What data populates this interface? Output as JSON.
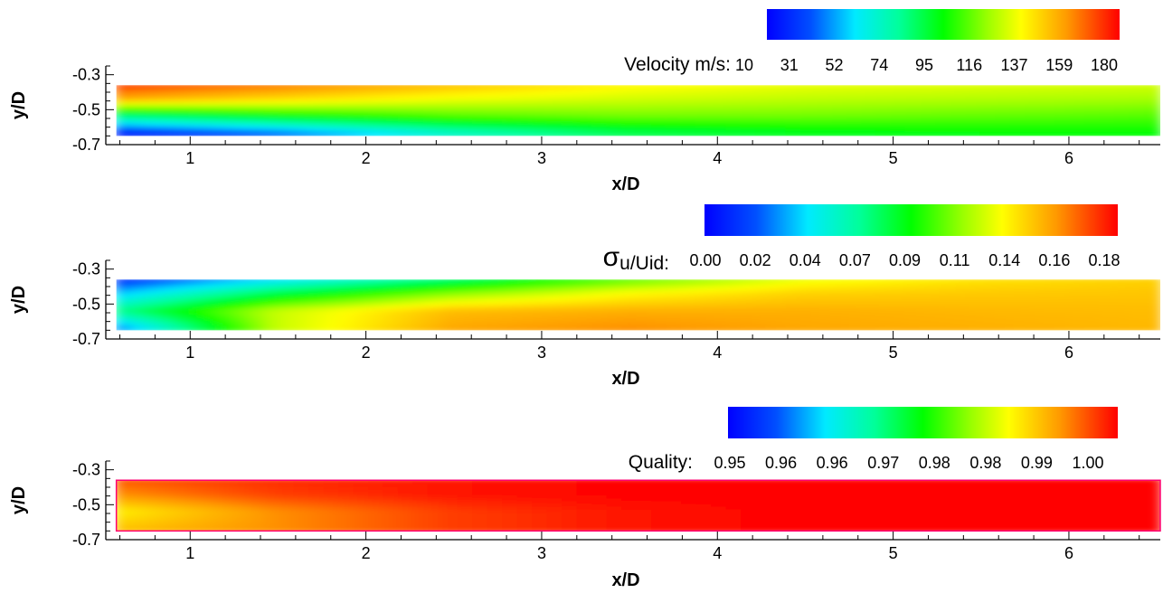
{
  "chart_data": [
    {
      "type": "heatmap",
      "xlabel": "x/D",
      "ylabel": "y/D",
      "xlim": [
        0.52,
        6.52
      ],
      "ylim": [
        -0.7,
        -0.25
      ],
      "field_extent": {
        "x": [
          0.58,
          6.52
        ],
        "y": [
          -0.65,
          -0.36
        ]
      },
      "x_ticks": [
        "1",
        "2",
        "3",
        "4",
        "5",
        "6"
      ],
      "y_ticks": [
        "-0.3",
        "-0.5",
        "-0.7"
      ],
      "colorbar": {
        "title_main": "Velocity m/s:",
        "title_sub": "",
        "labels": [
          "10",
          "31",
          "52",
          "74",
          "95",
          "116",
          "137",
          "159",
          "180"
        ],
        "range": [
          10,
          180
        ]
      },
      "field": {
        "x": [
          0.6,
          1.5,
          2.5,
          3.5,
          4.5,
          5.5,
          6.5
        ],
        "y": [
          -0.36,
          -0.45,
          -0.55,
          -0.65
        ],
        "values": [
          [
            172,
            162,
            148,
            135,
            130,
            128,
            126
          ],
          [
            150,
            140,
            130,
            125,
            122,
            120,
            118
          ],
          [
            75,
            92,
            105,
            110,
            110,
            108,
            106
          ],
          [
            15,
            32,
            62,
            82,
            90,
            93,
            94
          ]
        ]
      }
    },
    {
      "type": "heatmap",
      "xlabel": "x/D",
      "ylabel": "y/D",
      "xlim": [
        0.52,
        6.52
      ],
      "ylim": [
        -0.7,
        -0.25
      ],
      "field_extent": {
        "x": [
          0.58,
          6.52
        ],
        "y": [
          -0.65,
          -0.36
        ]
      },
      "x_ticks": [
        "1",
        "2",
        "3",
        "4",
        "5",
        "6"
      ],
      "y_ticks": [
        "-0.3",
        "-0.5",
        "-0.7"
      ],
      "colorbar": {
        "title_main": "σ",
        "title_sub": "u/Uid:",
        "labels": [
          "0.00",
          "0.02",
          "0.04",
          "0.07",
          "0.09",
          "0.11",
          "0.14",
          "0.16",
          "0.18"
        ],
        "range": [
          0.0,
          0.18
        ]
      },
      "field": {
        "x": [
          0.6,
          1.5,
          2.5,
          3.5,
          4.5,
          5.5,
          6.5
        ],
        "y": [
          -0.36,
          -0.45,
          -0.55,
          -0.65
        ],
        "values": [
          [
            0.01,
            0.04,
            0.07,
            0.1,
            0.125,
            0.135,
            0.14
          ],
          [
            0.04,
            0.08,
            0.11,
            0.13,
            0.14,
            0.142,
            0.143
          ],
          [
            0.07,
            0.12,
            0.145,
            0.148,
            0.148,
            0.146,
            0.145
          ],
          [
            0.03,
            0.12,
            0.15,
            0.155,
            0.15,
            0.148,
            0.146
          ]
        ]
      }
    },
    {
      "type": "heatmap",
      "xlabel": "x/D",
      "ylabel": "y/D",
      "xlim": [
        0.52,
        6.52
      ],
      "ylim": [
        -0.7,
        -0.25
      ],
      "field_extent": {
        "x": [
          0.58,
          6.52
        ],
        "y": [
          -0.65,
          -0.36
        ]
      },
      "x_ticks": [
        "1",
        "2",
        "3",
        "4",
        "5",
        "6"
      ],
      "y_ticks": [
        "-0.3",
        "-0.5",
        "-0.7"
      ],
      "colorbar": {
        "title_main": "Quality:",
        "title_sub": "",
        "labels": [
          "0.95",
          "0.96",
          "0.96",
          "0.97",
          "0.98",
          "0.98",
          "0.99",
          "1.00"
        ],
        "range": [
          0.95,
          1.0
        ]
      },
      "field": {
        "x": [
          0.6,
          1.5,
          2.5,
          3.5,
          4.5,
          5.5,
          6.5
        ],
        "y": [
          -0.36,
          -0.45,
          -0.55,
          -0.65
        ],
        "values": [
          [
            0.996,
            0.998,
            0.999,
            1.0,
            1.0,
            1.0,
            1.0
          ],
          [
            0.993,
            0.997,
            0.999,
            1.0,
            1.0,
            1.0,
            1.0
          ],
          [
            0.987,
            0.993,
            0.997,
            0.999,
            1.0,
            1.0,
            1.0
          ],
          [
            0.99,
            0.993,
            0.997,
            0.999,
            1.0,
            1.0,
            1.0
          ]
        ]
      }
    }
  ]
}
